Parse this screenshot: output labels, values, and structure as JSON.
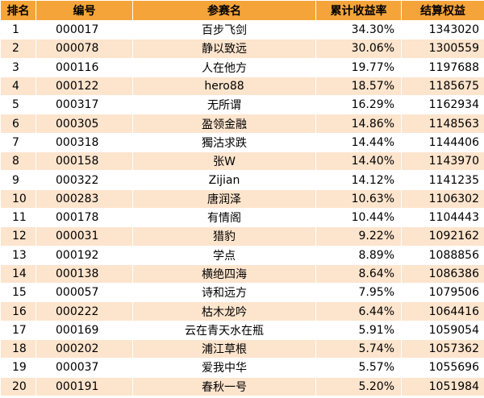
{
  "header": {
    "rank": "排名",
    "id": "编号",
    "name": "参赛名",
    "return": "累计收益率",
    "equity": "结算权益"
  },
  "rows": [
    {
      "rank": "1",
      "id": "000017",
      "name": "百步飞剑",
      "return": "34.30%",
      "equity": "1343020"
    },
    {
      "rank": "2",
      "id": "000078",
      "name": "静以致远",
      "return": "30.06%",
      "equity": "1300559"
    },
    {
      "rank": "3",
      "id": "000116",
      "name": "人在他方",
      "return": "19.77%",
      "equity": "1197688"
    },
    {
      "rank": "4",
      "id": "000122",
      "name": "hero88",
      "return": "18.57%",
      "equity": "1185675"
    },
    {
      "rank": "5",
      "id": "000317",
      "name": "无所谓",
      "return": "16.29%",
      "equity": "1162934"
    },
    {
      "rank": "6",
      "id": "000305",
      "name": "盈领金融",
      "return": "14.86%",
      "equity": "1148563"
    },
    {
      "rank": "7",
      "id": "000318",
      "name": "獨沽求跌",
      "return": "14.44%",
      "equity": "1144406"
    },
    {
      "rank": "8",
      "id": "000158",
      "name": "张W",
      "return": "14.40%",
      "equity": "1143970"
    },
    {
      "rank": "9",
      "id": "000322",
      "name": "Zijian",
      "return": "14.12%",
      "equity": "1141235"
    },
    {
      "rank": "10",
      "id": "000283",
      "name": "唐润泽",
      "return": "10.63%",
      "equity": "1106302"
    },
    {
      "rank": "11",
      "id": "000178",
      "name": "有情阁",
      "return": "10.44%",
      "equity": "1104443"
    },
    {
      "rank": "12",
      "id": "000031",
      "name": "猎豹",
      "return": "9.22%",
      "equity": "1092162"
    },
    {
      "rank": "13",
      "id": "000192",
      "name": "学点",
      "return": "8.89%",
      "equity": "1088856"
    },
    {
      "rank": "14",
      "id": "000138",
      "name": "横绝四海",
      "return": "8.64%",
      "equity": "1086386"
    },
    {
      "rank": "15",
      "id": "000057",
      "name": "诗和远方",
      "return": "7.95%",
      "equity": "1079506"
    },
    {
      "rank": "16",
      "id": "000222",
      "name": "枯木龙吟",
      "return": "6.44%",
      "equity": "1064416"
    },
    {
      "rank": "17",
      "id": "000169",
      "name": "云在青天水在瓶",
      "return": "5.91%",
      "equity": "1059054"
    },
    {
      "rank": "18",
      "id": "000202",
      "name": "浦江草根",
      "return": "5.74%",
      "equity": "1057362"
    },
    {
      "rank": "19",
      "id": "000037",
      "name": "爱我中华",
      "return": "5.57%",
      "equity": "1055696"
    },
    {
      "rank": "20",
      "id": "000191",
      "name": "春秋一号",
      "return": "5.20%",
      "equity": "1051984"
    }
  ],
  "colors": {
    "header_bg": "#f5a43a",
    "stripe_bg": "#fde4cd",
    "row_bg": "#ffffff"
  }
}
